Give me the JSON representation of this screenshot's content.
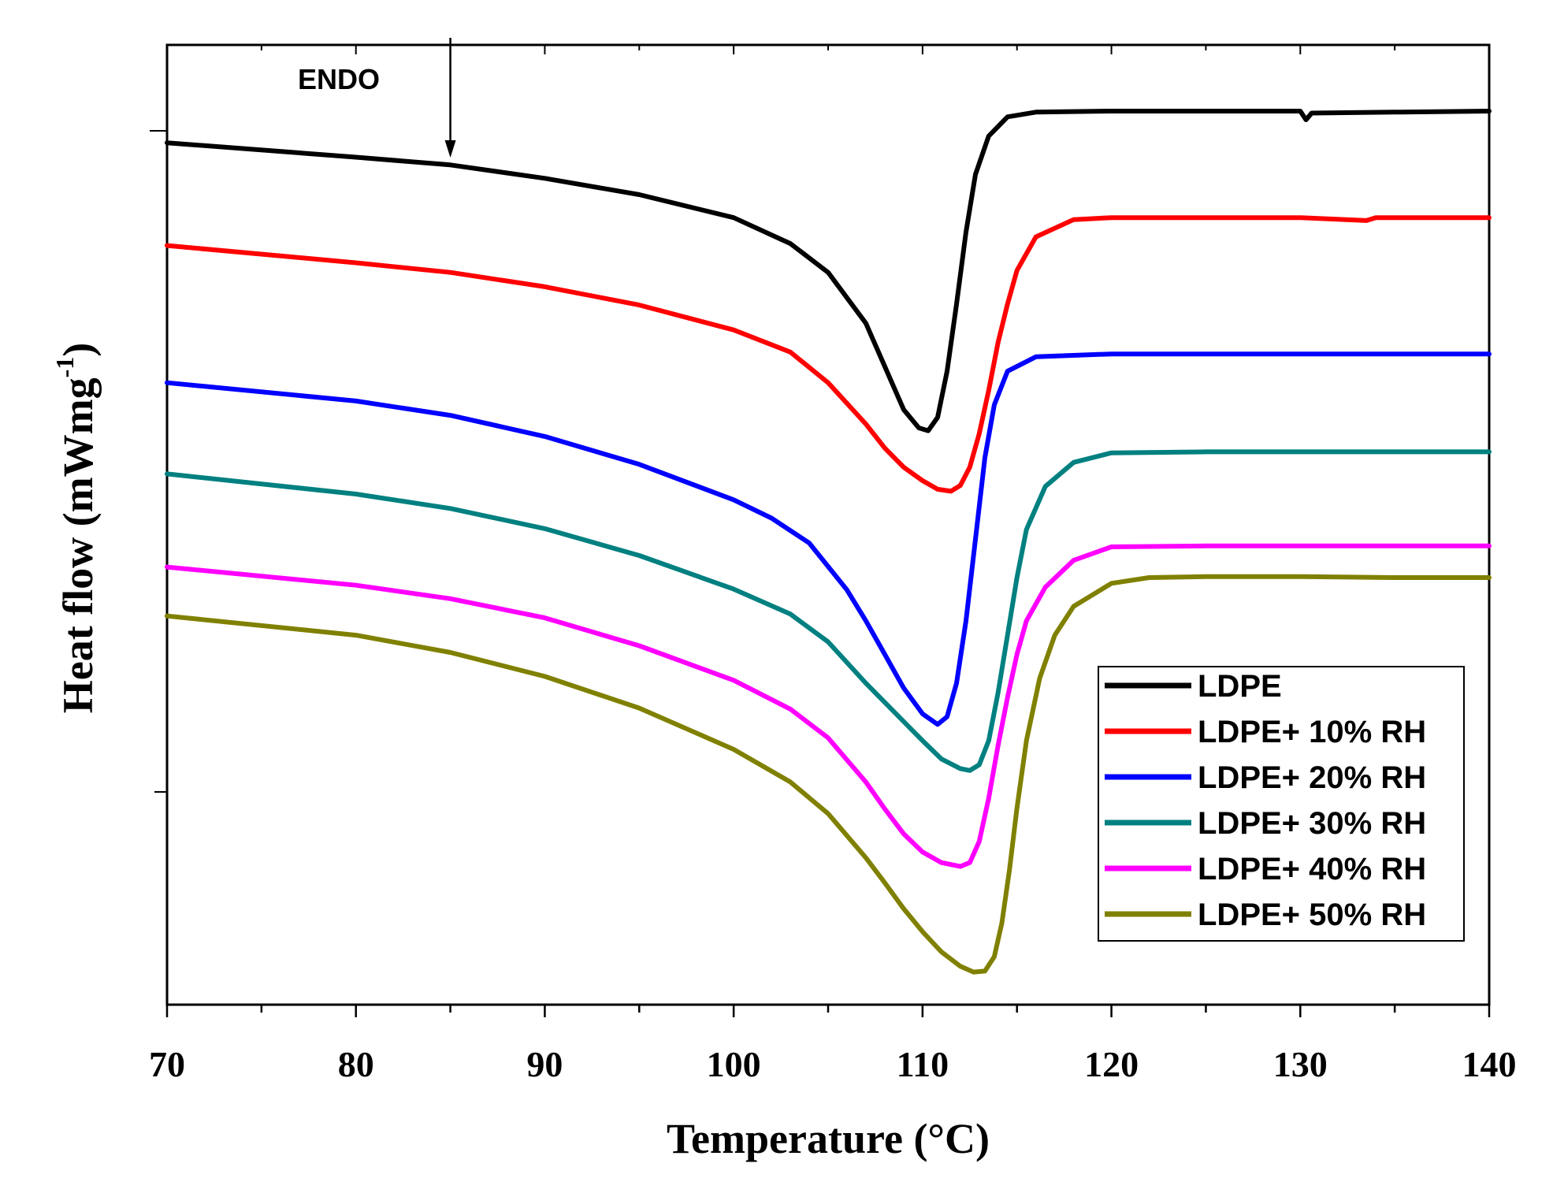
{
  "chart_data": {
    "type": "line",
    "title": "",
    "xlabel": "Temperature (°C)",
    "ylabel_main": "Heat flow (mWmg",
    "ylabel_sup": "-1",
    "ylabel_close": ")",
    "xlim": [
      70,
      140
    ],
    "ylim": [
      0,
      100
    ],
    "xticks": [
      70,
      80,
      90,
      100,
      110,
      120,
      130,
      140
    ],
    "y_tick_labels_shown": false,
    "grid": false,
    "legend_position": "bottom-right",
    "annotation": {
      "text": "ENDO",
      "x": 85
    },
    "series": [
      {
        "name": "LDPE",
        "color": "#000000",
        "points": [
          [
            70,
            89.8
          ],
          [
            80,
            88.3
          ],
          [
            85,
            87.5
          ],
          [
            90,
            86.1
          ],
          [
            95,
            84.4
          ],
          [
            100,
            82.0
          ],
          [
            103,
            79.3
          ],
          [
            105,
            76.3
          ],
          [
            107,
            71.0
          ],
          [
            108,
            66.5
          ],
          [
            109,
            62.0
          ],
          [
            109.8,
            60.1
          ],
          [
            110.3,
            59.8
          ],
          [
            110.8,
            61.2
          ],
          [
            111.3,
            66.0
          ],
          [
            111.8,
            73.0
          ],
          [
            112.3,
            80.5
          ],
          [
            112.8,
            86.5
          ],
          [
            113.5,
            90.5
          ],
          [
            114.5,
            92.5
          ],
          [
            116,
            93.0
          ],
          [
            120,
            93.1
          ],
          [
            125,
            93.1
          ],
          [
            130,
            93.1
          ],
          [
            130.3,
            92.2
          ],
          [
            130.6,
            92.9
          ],
          [
            135,
            93.0
          ],
          [
            140,
            93.1
          ]
        ]
      },
      {
        "name": "LDPE+ 10% RH",
        "color": "#ff0000",
        "points": [
          [
            70,
            79.1
          ],
          [
            80,
            77.3
          ],
          [
            85,
            76.3
          ],
          [
            90,
            74.8
          ],
          [
            95,
            72.9
          ],
          [
            100,
            70.3
          ],
          [
            103,
            68.0
          ],
          [
            105,
            64.8
          ],
          [
            107,
            60.5
          ],
          [
            108,
            58.0
          ],
          [
            109,
            56.0
          ],
          [
            110,
            54.6
          ],
          [
            110.8,
            53.7
          ],
          [
            111.5,
            53.5
          ],
          [
            112,
            54.1
          ],
          [
            112.5,
            56.0
          ],
          [
            113,
            59.5
          ],
          [
            113.5,
            64.0
          ],
          [
            114,
            69.0
          ],
          [
            114.5,
            73.0
          ],
          [
            115,
            76.5
          ],
          [
            116,
            80.0
          ],
          [
            118,
            81.8
          ],
          [
            120,
            82.0
          ],
          [
            125,
            82.0
          ],
          [
            130,
            82.0
          ],
          [
            133.5,
            81.7
          ],
          [
            134,
            82.0
          ],
          [
            140,
            82.0
          ]
        ]
      },
      {
        "name": "LDPE+ 20% RH",
        "color": "#0000ff",
        "points": [
          [
            70,
            64.8
          ],
          [
            80,
            62.9
          ],
          [
            85,
            61.4
          ],
          [
            90,
            59.2
          ],
          [
            95,
            56.3
          ],
          [
            100,
            52.6
          ],
          [
            102,
            50.7
          ],
          [
            104,
            48.1
          ],
          [
            106,
            43.2
          ],
          [
            107,
            40.0
          ],
          [
            108,
            36.5
          ],
          [
            109,
            33.0
          ],
          [
            110,
            30.3
          ],
          [
            110.8,
            29.2
          ],
          [
            111.3,
            30.0
          ],
          [
            111.8,
            33.5
          ],
          [
            112.3,
            40.0
          ],
          [
            112.8,
            48.5
          ],
          [
            113.3,
            57.0
          ],
          [
            113.8,
            62.5
          ],
          [
            114.5,
            66.0
          ],
          [
            116,
            67.5
          ],
          [
            120,
            67.8
          ],
          [
            130,
            67.8
          ],
          [
            140,
            67.8
          ]
        ]
      },
      {
        "name": "LDPE+ 30% RH",
        "color": "#008080",
        "points": [
          [
            70,
            55.3
          ],
          [
            80,
            53.2
          ],
          [
            85,
            51.7
          ],
          [
            90,
            49.6
          ],
          [
            95,
            46.8
          ],
          [
            100,
            43.3
          ],
          [
            103,
            40.7
          ],
          [
            105,
            37.8
          ],
          [
            107,
            33.5
          ],
          [
            109,
            29.5
          ],
          [
            110,
            27.5
          ],
          [
            111,
            25.6
          ],
          [
            112,
            24.6
          ],
          [
            112.5,
            24.4
          ],
          [
            113,
            25.0
          ],
          [
            113.5,
            27.5
          ],
          [
            114,
            32.5
          ],
          [
            114.5,
            38.5
          ],
          [
            115,
            44.5
          ],
          [
            115.5,
            49.5
          ],
          [
            116.5,
            54.0
          ],
          [
            118,
            56.5
          ],
          [
            120,
            57.5
          ],
          [
            125,
            57.6
          ],
          [
            130,
            57.6
          ],
          [
            140,
            57.6
          ]
        ]
      },
      {
        "name": "LDPE+ 40% RH",
        "color": "#ff00ff",
        "points": [
          [
            70,
            45.6
          ],
          [
            80,
            43.7
          ],
          [
            85,
            42.3
          ],
          [
            90,
            40.3
          ],
          [
            95,
            37.4
          ],
          [
            100,
            33.8
          ],
          [
            103,
            30.8
          ],
          [
            105,
            27.8
          ],
          [
            107,
            23.2
          ],
          [
            108,
            20.4
          ],
          [
            109,
            17.8
          ],
          [
            110,
            15.9
          ],
          [
            111,
            14.8
          ],
          [
            112,
            14.4
          ],
          [
            112.5,
            14.8
          ],
          [
            113,
            17.0
          ],
          [
            113.5,
            21.5
          ],
          [
            114,
            27.0
          ],
          [
            114.5,
            32.0
          ],
          [
            115,
            36.5
          ],
          [
            115.5,
            40.0
          ],
          [
            116.5,
            43.5
          ],
          [
            118,
            46.3
          ],
          [
            120,
            47.7
          ],
          [
            125,
            47.8
          ],
          [
            130,
            47.8
          ],
          [
            140,
            47.8
          ]
        ]
      },
      {
        "name": "LDPE+ 50% RH",
        "color": "#808000",
        "points": [
          [
            70,
            40.5
          ],
          [
            80,
            38.5
          ],
          [
            85,
            36.7
          ],
          [
            90,
            34.2
          ],
          [
            95,
            30.9
          ],
          [
            100,
            26.6
          ],
          [
            103,
            23.2
          ],
          [
            105,
            19.9
          ],
          [
            107,
            15.3
          ],
          [
            108,
            12.7
          ],
          [
            109,
            10.0
          ],
          [
            110,
            7.6
          ],
          [
            111,
            5.5
          ],
          [
            112,
            4.0
          ],
          [
            112.7,
            3.4
          ],
          [
            113.3,
            3.5
          ],
          [
            113.8,
            5.0
          ],
          [
            114.2,
            8.5
          ],
          [
            114.6,
            14.0
          ],
          [
            115,
            20.5
          ],
          [
            115.5,
            27.5
          ],
          [
            116.2,
            34.0
          ],
          [
            117,
            38.5
          ],
          [
            118,
            41.5
          ],
          [
            120,
            43.9
          ],
          [
            122,
            44.5
          ],
          [
            125,
            44.6
          ],
          [
            130,
            44.6
          ],
          [
            135,
            44.5
          ],
          [
            140,
            44.5
          ]
        ]
      }
    ]
  }
}
